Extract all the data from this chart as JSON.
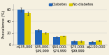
{
  "categories": [
    "<$35,000",
    "$35,000-\n$49,999",
    "$50,000-\n$74,999",
    "$75,000-\n$99,999",
    "≥$100,000"
  ],
  "diabetes": [
    60,
    25,
    13,
    6,
    5
  ],
  "no_diabetes": [
    54,
    20,
    15,
    6,
    7
  ],
  "diabetes_err": [
    3.5,
    2.5,
    1.5,
    1.0,
    1.0
  ],
  "no_diabetes_err": [
    2.5,
    1.5,
    1.0,
    0.8,
    0.8
  ],
  "diabetes_color": "#2266bb",
  "no_diabetes_color": "#ddcc00",
  "background_color": "#f5f0e0",
  "ylabel": "Prevalence (%)",
  "ylim": [
    0,
    70
  ],
  "yticks": [
    0,
    20,
    40,
    60
  ],
  "legend_diabetes": "Diabetes",
  "legend_no_diabetes": "No diabetes",
  "bar_width": 0.38,
  "axis_fontsize": 4.0,
  "tick_fontsize": 3.5
}
